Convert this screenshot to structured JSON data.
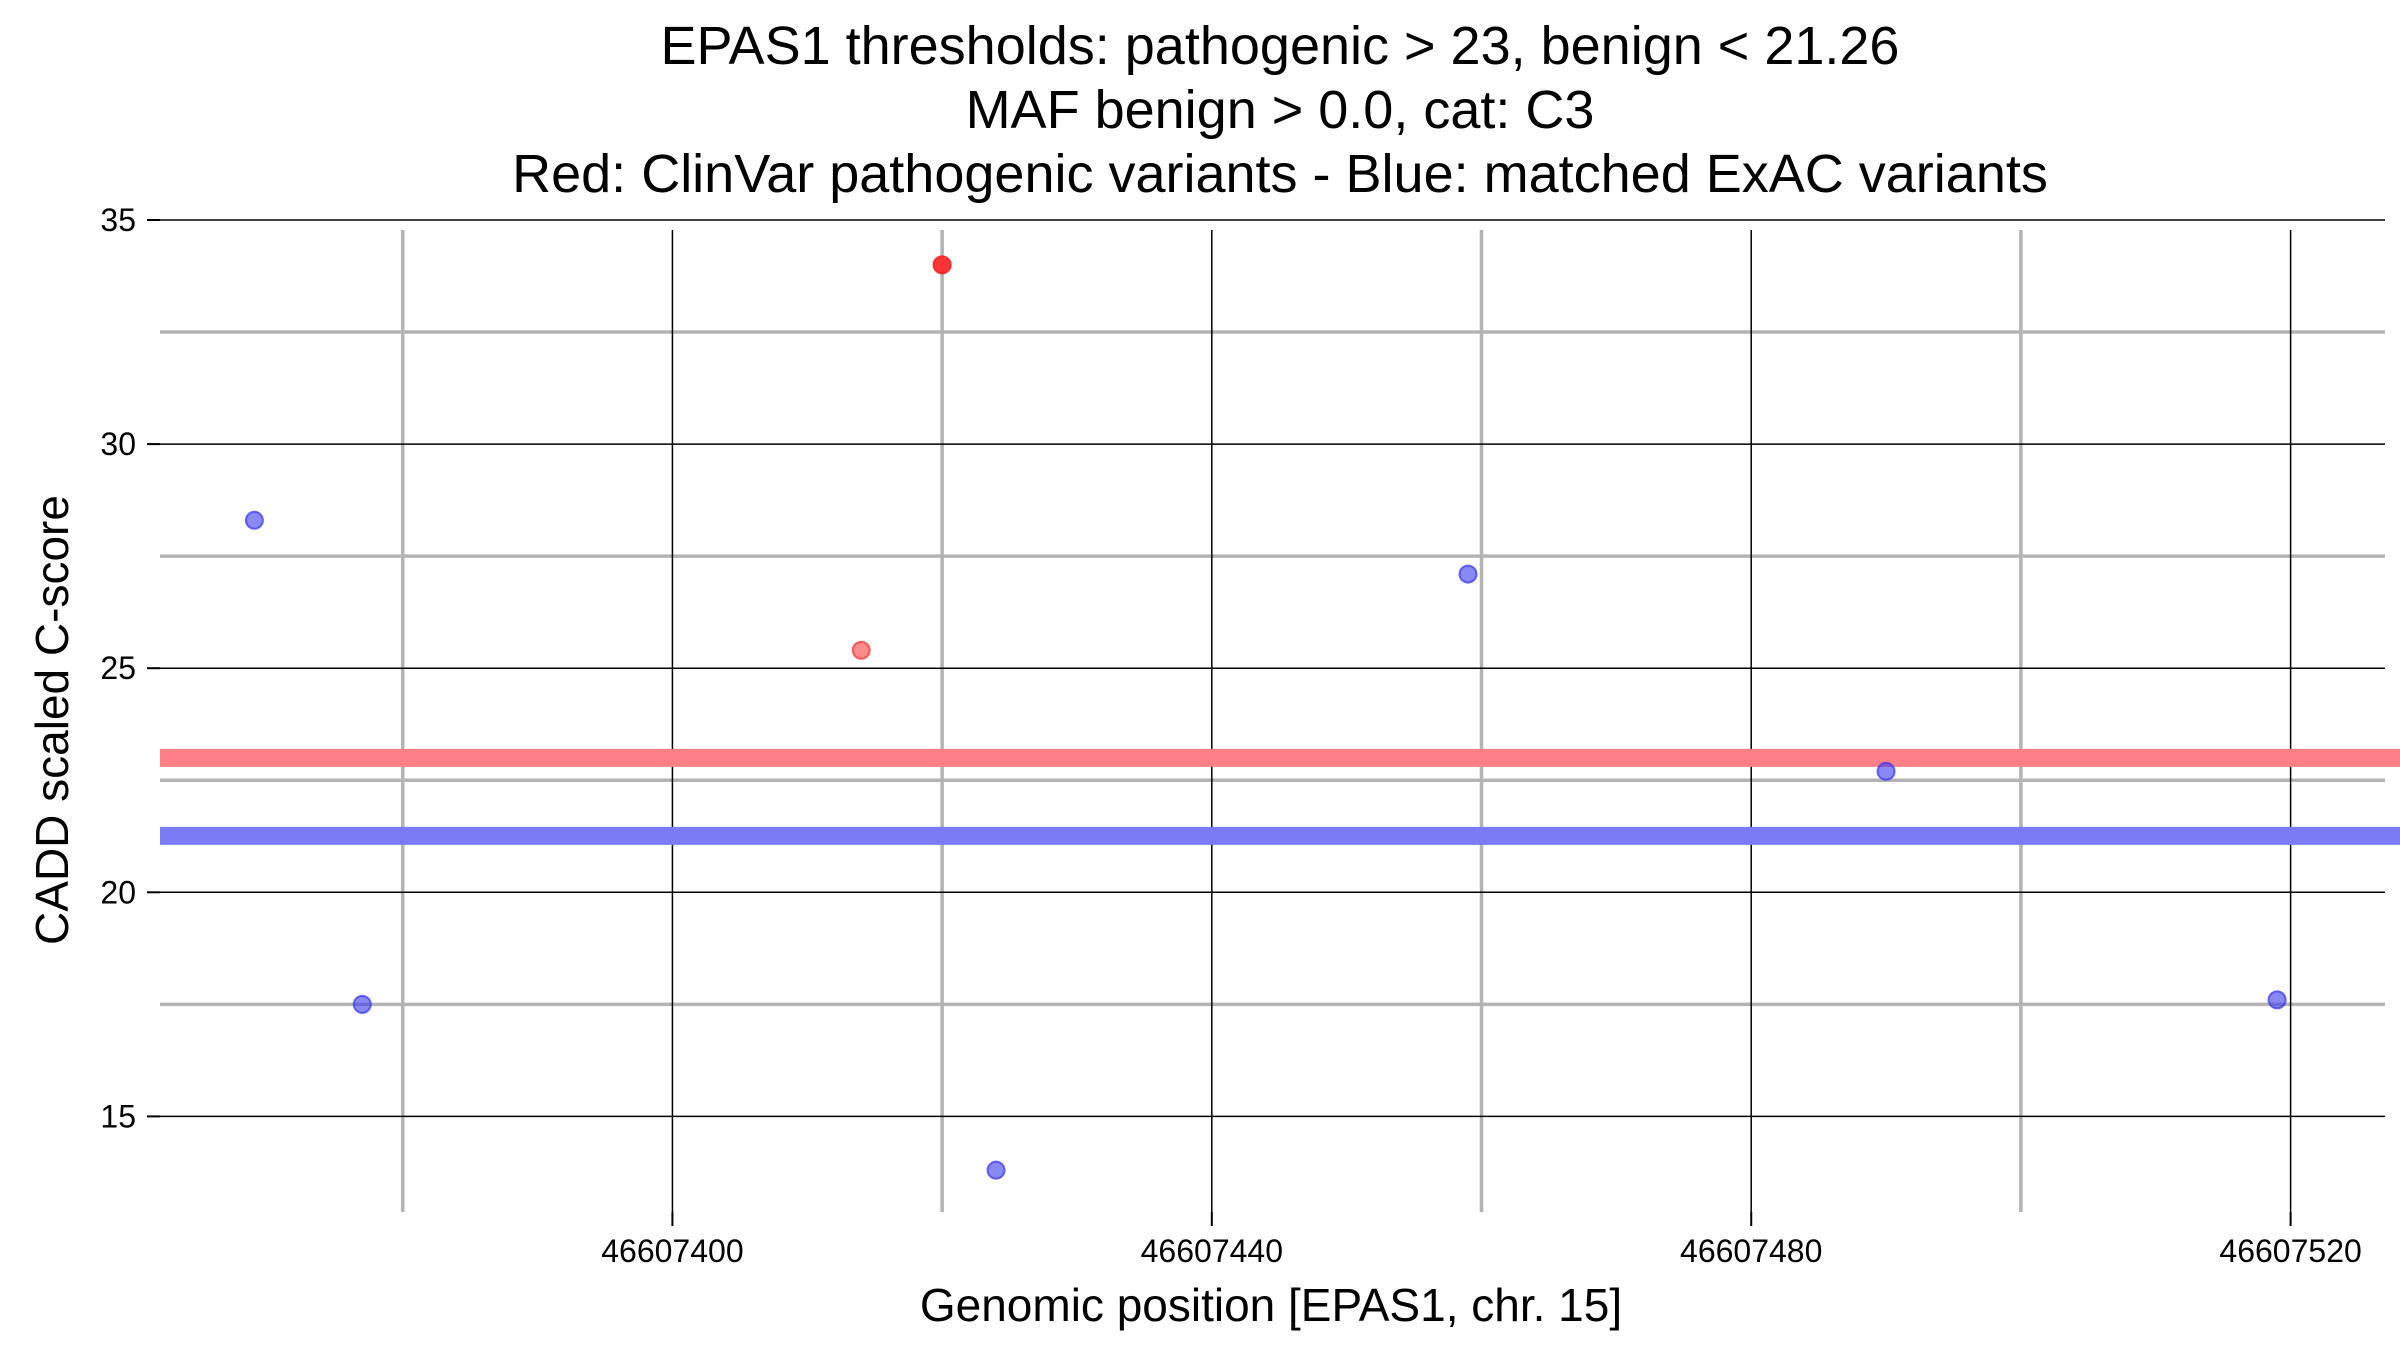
{
  "chart_data": {
    "type": "scatter",
    "title": [
      "EPAS1 thresholds: pathogenic > 23, benign < 21.26",
      "MAF benign > 0.0, cat: C3",
      "Red: ClinVar pathogenic variants - Blue: matched ExAC variants"
    ],
    "xlabel": "Genomic position [EPAS1, chr. 15]",
    "ylabel": "CADD scaled C-score",
    "xlim": [
      46607362,
      46607527
    ],
    "ylim": [
      12.8,
      35
    ],
    "x_ticks": [
      46607400,
      46607440,
      46607480,
      46607520
    ],
    "y_ticks": [
      15,
      20,
      25,
      30,
      35
    ],
    "grid": true,
    "thresholds": [
      {
        "name": "pathogenic",
        "value": 23,
        "color": "#ff7f86"
      },
      {
        "name": "benign",
        "value": 21.26,
        "color": "#7b7bf5"
      }
    ],
    "series": [
      {
        "name": "ClinVar pathogenic variants",
        "color": "#ff2b2b",
        "points": [
          {
            "x": 46607420,
            "y": 34.0,
            "opacity": 0.95
          },
          {
            "x": 46607414,
            "y": 25.4,
            "opacity": 0.55
          }
        ]
      },
      {
        "name": "matched ExAC variants",
        "color": "#3a3af0",
        "points": [
          {
            "x": 46607369,
            "y": 28.3,
            "opacity": 0.6
          },
          {
            "x": 46607377,
            "y": 17.5,
            "opacity": 0.6
          },
          {
            "x": 46607424,
            "y": 13.8,
            "opacity": 0.6
          },
          {
            "x": 46607459,
            "y": 27.1,
            "opacity": 0.6
          },
          {
            "x": 46607490,
            "y": 22.7,
            "opacity": 0.6
          },
          {
            "x": 46607519,
            "y": 17.6,
            "opacity": 0.6
          }
        ]
      }
    ]
  }
}
